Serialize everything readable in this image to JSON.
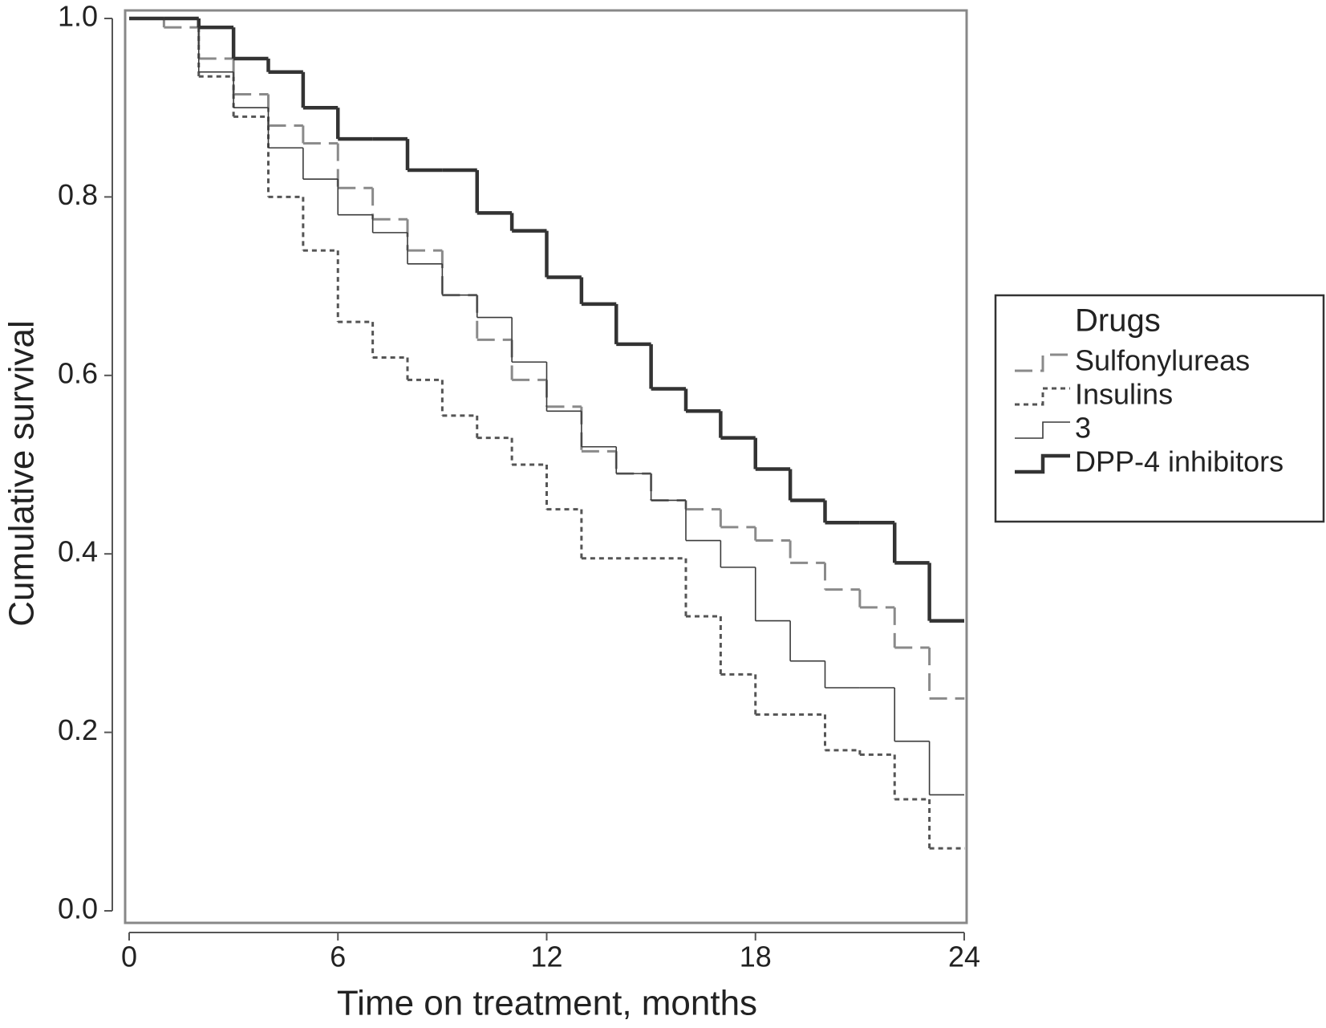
{
  "chart_data": {
    "type": "step",
    "x_label": "Time on treatment, months",
    "y_label": "Cumulative survival",
    "legend_title": "Drugs",
    "legend": "right",
    "x": [
      0,
      1,
      2,
      3,
      4,
      5,
      6,
      7,
      8,
      9,
      10,
      11,
      12,
      13,
      14,
      15,
      16,
      17,
      18,
      19,
      20,
      21,
      22,
      23,
      24
    ],
    "series": [
      {
        "name": "Sulfonylureas",
        "color": "#8a8a8a",
        "dash": "dashed",
        "linewidth": 3,
        "values": [
          1.0,
          0.99,
          0.955,
          0.915,
          0.88,
          0.86,
          0.81,
          0.775,
          0.74,
          0.69,
          0.64,
          0.595,
          0.565,
          0.515,
          0.49,
          0.46,
          0.45,
          0.43,
          0.415,
          0.39,
          0.36,
          0.34,
          0.295,
          0.238,
          0.238
        ]
      },
      {
        "name": "Insulins",
        "color": "#555555",
        "dash": "dotted",
        "linewidth": 3,
        "values": [
          1.0,
          1.0,
          0.935,
          0.89,
          0.8,
          0.74,
          0.66,
          0.62,
          0.595,
          0.555,
          0.53,
          0.5,
          0.45,
          0.395,
          0.395,
          0.395,
          0.33,
          0.265,
          0.22,
          0.22,
          0.18,
          0.175,
          0.125,
          0.07,
          0.07
        ]
      },
      {
        "name": "3",
        "color": "#3a3a3a",
        "dash": "solid",
        "linewidth": 1.6,
        "values": [
          1.0,
          1.0,
          0.94,
          0.9,
          0.855,
          0.82,
          0.78,
          0.76,
          0.725,
          0.69,
          0.665,
          0.615,
          0.56,
          0.52,
          0.49,
          0.46,
          0.415,
          0.385,
          0.325,
          0.28,
          0.25,
          0.25,
          0.19,
          0.13,
          0.13
        ]
      },
      {
        "name": "DPP-4 inhibitors",
        "color": "#333333",
        "dash": "solid",
        "linewidth": 4.5,
        "values": [
          1.0,
          1.0,
          0.99,
          0.955,
          0.94,
          0.9,
          0.865,
          0.865,
          0.83,
          0.83,
          0.782,
          0.762,
          0.71,
          0.68,
          0.635,
          0.585,
          0.56,
          0.53,
          0.495,
          0.46,
          0.435,
          0.435,
          0.39,
          0.325,
          0.325
        ]
      }
    ],
    "xlim": [
      0,
      24
    ],
    "ylim": [
      0,
      1
    ],
    "xticks": [
      0,
      6,
      12,
      18,
      24
    ],
    "yticks": [
      {
        "value": 0,
        "label": "0.0"
      },
      0.2,
      0.4,
      0.6,
      0.8,
      {
        "value": 1,
        "label": "1.0"
      }
    ]
  }
}
